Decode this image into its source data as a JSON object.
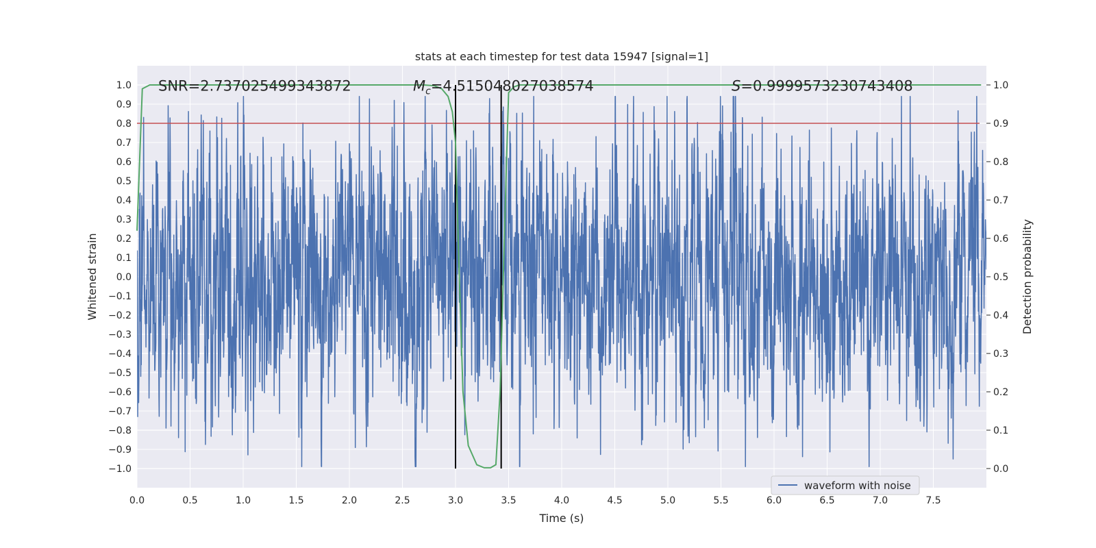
{
  "chart_data": {
    "type": "line",
    "title": "stats at each timestep for test data 15947 [signal=1]",
    "xlabel": "Time (s)",
    "ylabel": "Whitened strain",
    "y2label": "Detection probability",
    "xlim": [
      0.0,
      8.0
    ],
    "ylim": [
      -1.1,
      1.1
    ],
    "y2lim": [
      -0.05,
      1.05
    ],
    "xticks": [
      0.0,
      0.5,
      1.0,
      1.5,
      2.0,
      2.5,
      3.0,
      3.5,
      4.0,
      4.5,
      5.0,
      5.5,
      6.0,
      6.5,
      7.0,
      7.5
    ],
    "xtick_labels": [
      "0.0",
      "0.5",
      "1.0",
      "1.5",
      "2.0",
      "2.5",
      "3.0",
      "3.5",
      "4.0",
      "4.5",
      "5.0",
      "5.5",
      "6.0",
      "6.5",
      "7.0",
      "7.5"
    ],
    "yticks": [
      -1.0,
      -0.9,
      -0.8,
      -0.7,
      -0.6,
      -0.5,
      -0.4,
      -0.3,
      -0.2,
      -0.1,
      0.0,
      0.1,
      0.2,
      0.3,
      0.4,
      0.5,
      0.6,
      0.7,
      0.8,
      0.9,
      1.0
    ],
    "ytick_labels": [
      "−1.0",
      "−0.9",
      "−0.8",
      "−0.7",
      "−0.6",
      "−0.5",
      "−0.4",
      "−0.3",
      "−0.2",
      "−0.1",
      "0.0",
      "0.1",
      "0.2",
      "0.3",
      "0.4",
      "0.5",
      "0.6",
      "0.7",
      "0.8",
      "0.9",
      "1.0"
    ],
    "y2ticks": [
      0.0,
      0.1,
      0.2,
      0.3,
      0.4,
      0.5,
      0.6,
      0.7,
      0.8,
      0.9,
      1.0
    ],
    "y2tick_labels": [
      "0.0",
      "0.1",
      "0.2",
      "0.3",
      "0.4",
      "0.5",
      "0.6",
      "0.7",
      "0.8",
      "0.9",
      "1.0"
    ],
    "annotations": {
      "snr": "SNR=2.737025499343872",
      "mc_symbol": "M",
      "mc_subscript": "c",
      "mc_value": "=4.515048027038574",
      "s_symbol": "S",
      "s_value": "=0.9999573230743408"
    },
    "series": [
      {
        "name": "waveform with noise",
        "color": "#4c72b0",
        "axis": "left",
        "description_stats": {
          "x_range": [
            0.0,
            8.0
          ],
          "typical_amplitude": 0.35,
          "max": 0.94,
          "min": -0.99
        }
      },
      {
        "name": "detection probability",
        "color": "#55a868",
        "axis": "right",
        "x": [
          0.0,
          0.05,
          0.12,
          0.2,
          0.5,
          1.0,
          2.0,
          2.5,
          2.7,
          2.8,
          2.87,
          2.93,
          2.97,
          3.0,
          3.03,
          3.07,
          3.12,
          3.2,
          3.27,
          3.33,
          3.38,
          3.42,
          3.45,
          3.48,
          3.5,
          3.55,
          3.6,
          4.0,
          5.0,
          6.0,
          7.0,
          7.95
        ],
        "values": [
          0.62,
          0.99,
          1.0,
          1.0,
          1.0,
          1.0,
          1.0,
          1.0,
          1.0,
          0.998,
          0.99,
          0.97,
          0.93,
          0.85,
          0.55,
          0.2,
          0.06,
          0.01,
          0.002,
          0.002,
          0.01,
          0.2,
          0.5,
          0.8,
          0.98,
          0.995,
          1.0,
          1.0,
          1.0,
          1.0,
          1.0,
          1.0
        ]
      }
    ],
    "threshold": {
      "value": 0.9,
      "axis": "right",
      "color": "#c44e52"
    },
    "vertical_lines": [
      3.0,
      3.43
    ],
    "vertical_line_color": "#000000",
    "legend": {
      "position": "lower-right",
      "entries": [
        "waveform with noise"
      ]
    },
    "grid": true,
    "colors": {
      "plot_bg": "#eaeaf2",
      "grid": "#ffffff",
      "text": "#262626"
    }
  }
}
